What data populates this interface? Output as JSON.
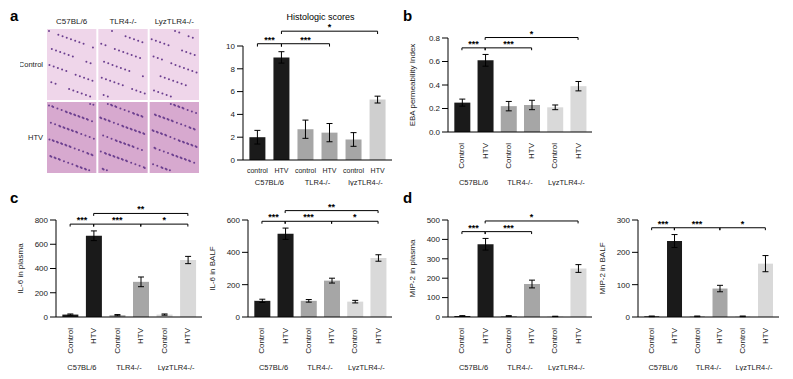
{
  "image_grid": {
    "panel": "a",
    "columns": [
      "C57BL/6",
      "TLR4-/-",
      "LyzTLR4-/-"
    ],
    "rows": [
      "Control",
      "HTV"
    ]
  },
  "chart_data": [
    {
      "panel": "a",
      "type": "bar",
      "title": "Histologic scores",
      "categories": [
        "control",
        "HTV",
        "control",
        "HTV",
        "control",
        "HTV"
      ],
      "groups": [
        "C57BL/6",
        "TLR4-/-",
        "lyzTLR4-/-"
      ],
      "values": [
        2.0,
        9.0,
        2.7,
        2.4,
        1.8,
        5.3
      ],
      "errors": [
        0.6,
        0.5,
        0.8,
        0.8,
        0.6,
        0.3
      ],
      "colors": [
        "#1a1a1a",
        "#1a1a1a",
        "#a6a6a6",
        "#a6a6a6",
        "#a6a6a6",
        "#cfcfcf"
      ],
      "ylim": [
        0,
        10
      ],
      "yticks": [
        0,
        2,
        4,
        6,
        8,
        10
      ],
      "significance": [
        {
          "from": 0,
          "to": 1,
          "label": "***"
        },
        {
          "from": 1,
          "to": 3,
          "label": "***"
        },
        {
          "from": 1,
          "to": 5,
          "label": "*"
        }
      ]
    },
    {
      "panel": "b",
      "type": "bar",
      "y_label": "EBA permeability Index",
      "categories": [
        "Control",
        "HTV",
        "Control",
        "HTV",
        "Control",
        "HTV"
      ],
      "groups": [
        "C57BL/6",
        "TLR4-/-",
        "LyzTLR4-/-"
      ],
      "values": [
        0.25,
        0.61,
        0.22,
        0.23,
        0.21,
        0.39
      ],
      "errors": [
        0.03,
        0.05,
        0.04,
        0.04,
        0.02,
        0.04
      ],
      "colors": [
        "#1a1a1a",
        "#1a1a1a",
        "#a6a6a6",
        "#a6a6a6",
        "#d9d9d9",
        "#d9d9d9"
      ],
      "ylim": [
        0,
        0.8
      ],
      "yticks": [
        {
          "value": 0,
          "label": "0.0"
        },
        {
          "value": 0.2,
          "label": "0.2"
        },
        {
          "value": 0.4,
          "label": "0.4"
        },
        {
          "value": 0.6,
          "label": "0.6"
        },
        {
          "value": 0.8,
          "label": "0.8"
        }
      ],
      "significance": [
        {
          "from": 0,
          "to": 1,
          "label": "***"
        },
        {
          "from": 1,
          "to": 3,
          "label": "***"
        },
        {
          "from": 1,
          "to": 5,
          "label": "*"
        }
      ]
    },
    {
      "panel": "c",
      "type": "bar",
      "y_label": "IL-6 in plasma",
      "categories": [
        "Control",
        "HTV",
        "Control",
        "HTV",
        "Control",
        "HTV"
      ],
      "groups": [
        "C57BL/6",
        "TLR4-/-",
        "LyzTLR4-/-"
      ],
      "values": [
        20,
        670,
        15,
        290,
        20,
        470
      ],
      "errors": [
        5,
        40,
        5,
        40,
        5,
        30
      ],
      "colors": [
        "#1a1a1a",
        "#1a1a1a",
        "#a6a6a6",
        "#a6a6a6",
        "#d9d9d9",
        "#d9d9d9"
      ],
      "ylim": [
        0,
        800
      ],
      "yticks": [
        0,
        200,
        400,
        600,
        800
      ],
      "significance": [
        {
          "from": 0,
          "to": 1,
          "label": "***"
        },
        {
          "from": 1,
          "to": 3,
          "label": "***"
        },
        {
          "from": 3,
          "to": 5,
          "label": "*"
        },
        {
          "from": 1,
          "to": 5,
          "label": "**"
        }
      ]
    },
    {
      "type": "bar",
      "y_label": "IL-6 in BALF",
      "categories": [
        "Control",
        "HTV",
        "Control",
        "HTV",
        "Control",
        "HTV"
      ],
      "groups": [
        "C57BL/6",
        "TLR4-/-",
        "LyzTLR4-/-"
      ],
      "values": [
        100,
        515,
        100,
        225,
        95,
        365
      ],
      "errors": [
        10,
        35,
        8,
        15,
        8,
        20
      ],
      "colors": [
        "#1a1a1a",
        "#1a1a1a",
        "#a6a6a6",
        "#a6a6a6",
        "#d9d9d9",
        "#d9d9d9"
      ],
      "ylim": [
        0,
        600
      ],
      "yticks": [
        0,
        200,
        400,
        600
      ],
      "significance": [
        {
          "from": 0,
          "to": 1,
          "label": "***"
        },
        {
          "from": 1,
          "to": 3,
          "label": "***"
        },
        {
          "from": 3,
          "to": 5,
          "label": "*"
        },
        {
          "from": 1,
          "to": 5,
          "label": "**"
        }
      ]
    },
    {
      "panel": "d",
      "type": "bar",
      "y_label": "MIP-2 in plasma",
      "categories": [
        "Control",
        "HTV",
        "Control",
        "HTV",
        "Control",
        "HTV"
      ],
      "groups": [
        "C57BL/6",
        "TLR4-/-",
        "LyzTLR4-/-"
      ],
      "values": [
        5,
        375,
        5,
        170,
        3,
        250
      ],
      "errors": [
        2,
        30,
        2,
        20,
        1,
        20
      ],
      "colors": [
        "#1a1a1a",
        "#1a1a1a",
        "#a6a6a6",
        "#a6a6a6",
        "#d9d9d9",
        "#d9d9d9"
      ],
      "ylim": [
        0,
        500
      ],
      "yticks": [
        0,
        100,
        200,
        300,
        400,
        500
      ],
      "significance": [
        {
          "from": 0,
          "to": 1,
          "label": "***"
        },
        {
          "from": 1,
          "to": 3,
          "label": "***"
        },
        {
          "from": 1,
          "to": 5,
          "label": "*"
        }
      ]
    },
    {
      "type": "bar",
      "y_label": "MIP-2 in BALF",
      "categories": [
        "Control",
        "HTV",
        "Control",
        "HTV",
        "Control",
        "HTV"
      ],
      "groups": [
        "C57BL/6",
        "TLR4-/-",
        "LyzTLR4-/-"
      ],
      "values": [
        2,
        235,
        2,
        88,
        2,
        165
      ],
      "errors": [
        1,
        20,
        1,
        10,
        1,
        25
      ],
      "colors": [
        "#1a1a1a",
        "#1a1a1a",
        "#a6a6a6",
        "#a6a6a6",
        "#d9d9d9",
        "#d9d9d9"
      ],
      "ylim": [
        0,
        300
      ],
      "yticks": [
        0,
        100,
        200,
        300
      ],
      "significance": [
        {
          "from": 0,
          "to": 1,
          "label": "***"
        },
        {
          "from": 1,
          "to": 3,
          "label": "***"
        },
        {
          "from": 3,
          "to": 5,
          "label": "*"
        }
      ]
    }
  ]
}
